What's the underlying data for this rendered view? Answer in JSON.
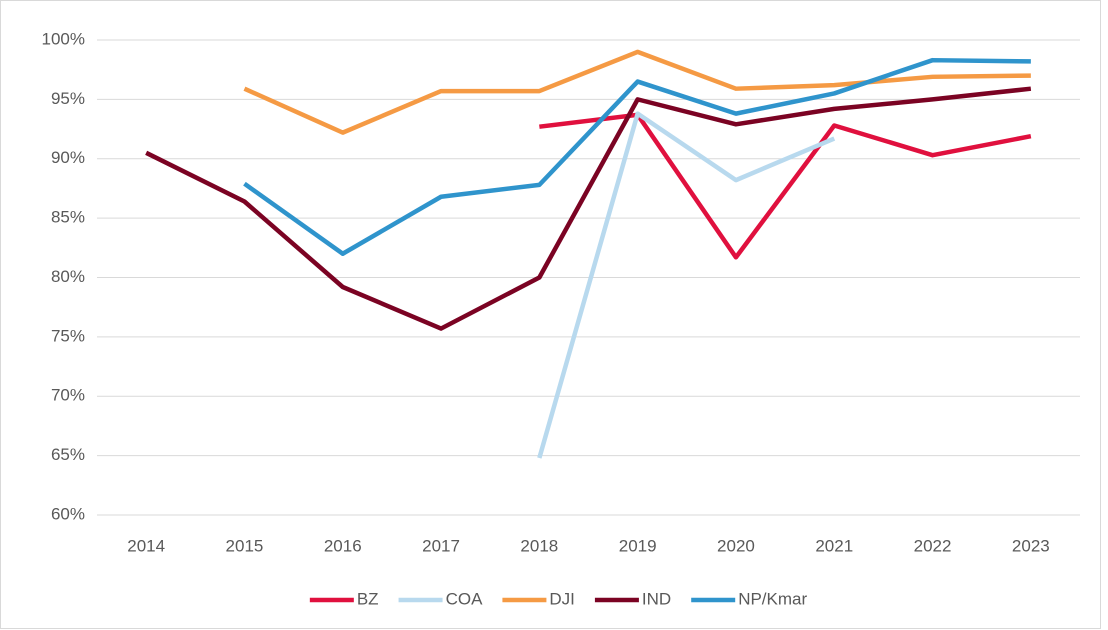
{
  "chart_data": {
    "type": "line",
    "categories": [
      "2014",
      "2015",
      "2016",
      "2017",
      "2018",
      "2019",
      "2020",
      "2021",
      "2022",
      "2023"
    ],
    "series": [
      {
        "name": "BZ",
        "color": "#e0103e",
        "values": [
          null,
          null,
          null,
          null,
          92.7,
          93.7,
          81.7,
          92.8,
          90.3,
          91.9
        ]
      },
      {
        "name": "COA",
        "color": "#b8d9ee",
        "values": [
          null,
          null,
          null,
          null,
          64.8,
          93.8,
          88.2,
          91.7,
          null,
          null
        ]
      },
      {
        "name": "DJI",
        "color": "#f59a44",
        "values": [
          null,
          95.9,
          92.2,
          95.7,
          95.7,
          99.0,
          95.9,
          96.2,
          96.9,
          97.0
        ]
      },
      {
        "name": "IND",
        "color": "#7b0323",
        "values": [
          90.5,
          86.4,
          79.2,
          75.7,
          80.0,
          95.0,
          92.9,
          94.2,
          95.0,
          95.9
        ]
      },
      {
        "name": "NP/Kmar",
        "color": "#2f94cc",
        "values": [
          null,
          87.9,
          82.0,
          86.8,
          87.8,
          96.5,
          93.8,
          95.5,
          98.3,
          98.2
        ]
      }
    ],
    "ylim": [
      60,
      100
    ],
    "yticks": [
      {
        "value": 60,
        "label": "60%"
      },
      {
        "value": 65,
        "label": "65%"
      },
      {
        "value": 70,
        "label": "70%"
      },
      {
        "value": 75,
        "label": "75%"
      },
      {
        "value": 80,
        "label": "80%"
      },
      {
        "value": 85,
        "label": "85%"
      },
      {
        "value": 90,
        "label": "90%"
      },
      {
        "value": 95,
        "label": "95%"
      },
      {
        "value": 100,
        "label": "100%"
      }
    ],
    "grid": true,
    "legend": "bottom"
  }
}
